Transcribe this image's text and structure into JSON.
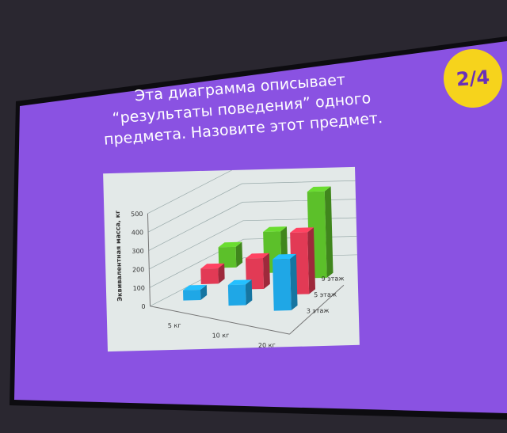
{
  "slide": {
    "badge": "2/4",
    "title_lines": [
      "Эта диаграмма описывает",
      "“результаты поведения” одного",
      "предмета. Назовите этот предмет."
    ],
    "background_color": "#8a52e2",
    "badge_color": "#f6d31c"
  },
  "chart_data": {
    "type": "bar",
    "subtype": "3d-clustered",
    "ylabel": "Эквивалентная масса, кг",
    "ylim": [
      0,
      500
    ],
    "yticks": [
      "0",
      "100",
      "200",
      "300",
      "400",
      "500"
    ],
    "categories": [
      "5 кг",
      "10 кг",
      "20 кг"
    ],
    "series": [
      {
        "name": "3 этаж",
        "color": "#1fa7e6",
        "values": [
          50,
          100,
          250
        ]
      },
      {
        "name": "5 этаж",
        "color": "#e23a55",
        "values": [
          75,
          150,
          300
        ]
      },
      {
        "name": "9 этаж",
        "color": "#5cc02a",
        "values": [
          100,
          200,
          420
        ]
      }
    ],
    "grid": true
  }
}
